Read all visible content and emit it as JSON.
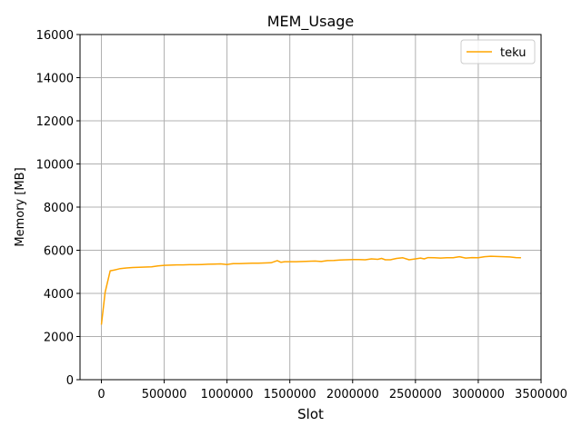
{
  "chart_data": {
    "type": "line",
    "title": "MEM_Usage",
    "xlabel": "Slot",
    "ylabel": "Memory [MB]",
    "xlim": [
      -170000,
      3500000
    ],
    "ylim": [
      0,
      16000
    ],
    "xticks": [
      0,
      500000,
      1000000,
      1500000,
      2000000,
      2500000,
      3000000,
      3500000
    ],
    "yticks": [
      0,
      2000,
      4000,
      6000,
      8000,
      10000,
      12000,
      14000,
      16000
    ],
    "grid": true,
    "legend_position": "top-right",
    "colors": {
      "line": "#ffa500",
      "grid": "#b0b0b0",
      "axes": "#000000"
    },
    "series": [
      {
        "name": "teku",
        "x": [
          0,
          30000,
          70000,
          100000,
          150000,
          200000,
          250000,
          300000,
          350000,
          400000,
          450000,
          500000,
          550000,
          600000,
          650000,
          700000,
          750000,
          800000,
          850000,
          900000,
          950000,
          1000000,
          1050000,
          1100000,
          1150000,
          1200000,
          1250000,
          1300000,
          1350000,
          1400000,
          1430000,
          1460000,
          1500000,
          1550000,
          1600000,
          1650000,
          1700000,
          1750000,
          1800000,
          1850000,
          1900000,
          1950000,
          2000000,
          2050000,
          2100000,
          2150000,
          2200000,
          2230000,
          2260000,
          2300000,
          2350000,
          2400000,
          2450000,
          2500000,
          2540000,
          2570000,
          2600000,
          2650000,
          2700000,
          2750000,
          2800000,
          2850000,
          2900000,
          2950000,
          3000000,
          3050000,
          3100000,
          3150000,
          3200000,
          3250000,
          3300000,
          3340000
        ],
        "y": [
          2550,
          4050,
          5050,
          5080,
          5150,
          5180,
          5200,
          5210,
          5220,
          5230,
          5270,
          5300,
          5310,
          5320,
          5320,
          5330,
          5330,
          5340,
          5350,
          5360,
          5370,
          5340,
          5380,
          5380,
          5390,
          5400,
          5400,
          5410,
          5420,
          5520,
          5440,
          5470,
          5470,
          5470,
          5480,
          5490,
          5500,
          5480,
          5520,
          5530,
          5550,
          5560,
          5570,
          5570,
          5560,
          5600,
          5580,
          5620,
          5560,
          5560,
          5620,
          5650,
          5560,
          5600,
          5640,
          5600,
          5660,
          5650,
          5640,
          5650,
          5650,
          5700,
          5640,
          5660,
          5650,
          5700,
          5720,
          5710,
          5700,
          5690,
          5660,
          5650
        ]
      }
    ]
  }
}
